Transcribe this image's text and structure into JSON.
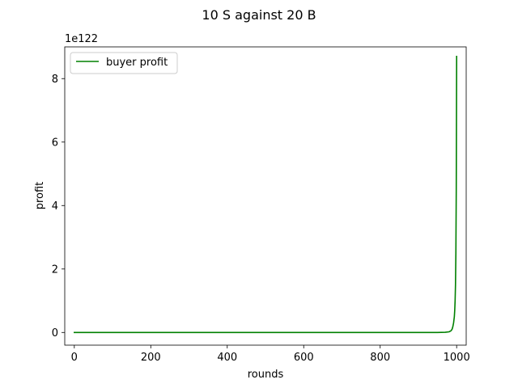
{
  "chart_data": {
    "type": "line",
    "title": "10 S against 20 B",
    "xlabel": "rounds",
    "ylabel": "profit",
    "y_offset_text": "1e122",
    "xlim": [
      -25,
      1025
    ],
    "ylim": [
      -0.4,
      9.0
    ],
    "y_scale_note": "values in units of 1e122",
    "xticks": [
      0,
      200,
      400,
      600,
      800,
      1000
    ],
    "yticks": [
      0,
      2,
      4,
      6,
      8
    ],
    "grid": false,
    "legend_position": "top-left",
    "series": [
      {
        "name": "buyer profit",
        "color": "#008000",
        "x": [
          0,
          200,
          400,
          600,
          800,
          900,
          950,
          970,
          980,
          985,
          988,
          990,
          992,
          994,
          995,
          996,
          997,
          998,
          999,
          1000
        ],
        "y": [
          0,
          0,
          0,
          0,
          0,
          0,
          0,
          0.005,
          0.02,
          0.05,
          0.1,
          0.18,
          0.3,
          0.5,
          0.7,
          1.0,
          1.5,
          2.5,
          4.5,
          8.7
        ]
      }
    ]
  }
}
